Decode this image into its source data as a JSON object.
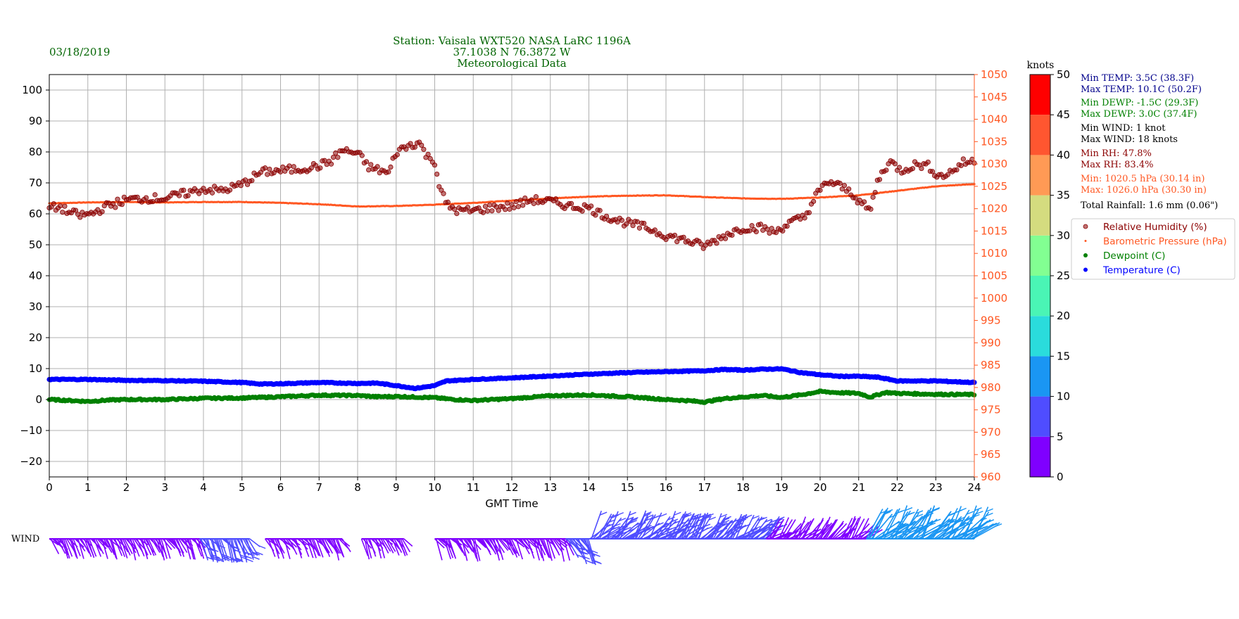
{
  "header": {
    "date": "03/18/2019",
    "title_lines": [
      "Station:  Vaisala WXT520  NASA LaRC 1196A",
      "37.1038 N 76.3872 W",
      "Meteorological Data"
    ]
  },
  "colors": {
    "title": "#006400",
    "rh": "#8b0000",
    "pressure": "#ff5722",
    "dewpoint": "#008000",
    "temperature": "#0000ff",
    "grid": "#b0b0b0"
  },
  "chart_data": {
    "type": "scatter",
    "xlabel": "GMT Time",
    "x_range": [
      0,
      24
    ],
    "x_ticks": [
      "0",
      "1",
      "2",
      "3",
      "4",
      "5",
      "6",
      "7",
      "8",
      "9",
      "10",
      "11",
      "12",
      "13",
      "14",
      "15",
      "16",
      "17",
      "18",
      "19",
      "20",
      "21",
      "22",
      "23",
      "24"
    ],
    "y_left_range": [
      -25,
      105
    ],
    "y_left_ticks": [
      "100",
      "90",
      "80",
      "70",
      "60",
      "50",
      "40",
      "30",
      "20",
      "10",
      "0",
      "−10",
      "−20"
    ],
    "y_right_range": [
      960,
      1050
    ],
    "y_right_ticks": [
      "1050",
      "1045",
      "1040",
      "1035",
      "1030",
      "1025",
      "1020",
      "1015",
      "1010",
      "1005",
      "1000",
      "995",
      "990",
      "985",
      "980",
      "975",
      "970",
      "965",
      "960"
    ],
    "grid": true,
    "legend_position": "right",
    "series": [
      {
        "name": "Relative Humidity (%)",
        "axis": "left",
        "points": [
          [
            0,
            62
          ],
          [
            0.3,
            62
          ],
          [
            0.5,
            60.5
          ],
          [
            0.8,
            59.5
          ],
          [
            1.1,
            60
          ],
          [
            1.5,
            62.5
          ],
          [
            2,
            64.5
          ],
          [
            2.5,
            65
          ],
          [
            3,
            65
          ],
          [
            3.5,
            66.5
          ],
          [
            4,
            68
          ],
          [
            4.5,
            67.5
          ],
          [
            5,
            69.5
          ],
          [
            5.5,
            73.5
          ],
          [
            6,
            74
          ],
          [
            6.5,
            74.5
          ],
          [
            7,
            75.5
          ],
          [
            7.3,
            77
          ],
          [
            7.6,
            80.5
          ],
          [
            7.8,
            80
          ],
          [
            8,
            79.5
          ],
          [
            8.3,
            75
          ],
          [
            8.6,
            74
          ],
          [
            8.8,
            73
          ],
          [
            9,
            80
          ],
          [
            9.4,
            82.5
          ],
          [
            9.6,
            83
          ],
          [
            9.8,
            78.5
          ],
          [
            10,
            77
          ],
          [
            10.1,
            70
          ],
          [
            10.3,
            63
          ],
          [
            10.6,
            61
          ],
          [
            11,
            61
          ],
          [
            11.5,
            62
          ],
          [
            12,
            62.5
          ],
          [
            12.5,
            64.5
          ],
          [
            13,
            64
          ],
          [
            13.5,
            62.5
          ],
          [
            14,
            62
          ],
          [
            14.3,
            60
          ],
          [
            14.6,
            58.5
          ],
          [
            15,
            57
          ],
          [
            15.5,
            55.5
          ],
          [
            16,
            53
          ],
          [
            16.5,
            51.5
          ],
          [
            17,
            49.5
          ],
          [
            17.3,
            51.5
          ],
          [
            17.6,
            53.5
          ],
          [
            18,
            55.5
          ],
          [
            18.5,
            55.5
          ],
          [
            18.8,
            54
          ],
          [
            19.2,
            57
          ],
          [
            19.6,
            59
          ],
          [
            19.9,
            66
          ],
          [
            20.2,
            70.5
          ],
          [
            20.5,
            69
          ],
          [
            20.8,
            67
          ],
          [
            21.1,
            63
          ],
          [
            21.3,
            61
          ],
          [
            21.5,
            71
          ],
          [
            21.8,
            77
          ],
          [
            22.1,
            74
          ],
          [
            22.5,
            76
          ],
          [
            22.8,
            75.5
          ],
          [
            23.1,
            72
          ],
          [
            23.4,
            73.5
          ],
          [
            23.7,
            76.5
          ],
          [
            24,
            77
          ]
        ]
      },
      {
        "name": "Barometric Pressure (hPa)",
        "axis": "right",
        "points": [
          [
            0,
            1021.2
          ],
          [
            1,
            1021.4
          ],
          [
            2,
            1021.5
          ],
          [
            3,
            1021.4
          ],
          [
            4,
            1021.5
          ],
          [
            5,
            1021.5
          ],
          [
            6,
            1021.3
          ],
          [
            7,
            1021.0
          ],
          [
            8,
            1020.5
          ],
          [
            9,
            1020.6
          ],
          [
            10,
            1020.9
          ],
          [
            11,
            1021.3
          ],
          [
            12,
            1021.8
          ],
          [
            13,
            1022.3
          ],
          [
            14,
            1022.7
          ],
          [
            15,
            1022.9
          ],
          [
            16,
            1023.0
          ],
          [
            17,
            1022.6
          ],
          [
            18,
            1022.3
          ],
          [
            19,
            1022.2
          ],
          [
            20,
            1022.5
          ],
          [
            21,
            1023.0
          ],
          [
            22,
            1024.0
          ],
          [
            23,
            1025.0
          ],
          [
            24,
            1025.5
          ]
        ]
      },
      {
        "name": "Dewpoint (C)",
        "axis": "left",
        "points": [
          [
            0,
            0
          ],
          [
            0.5,
            -0.3
          ],
          [
            1,
            -0.6
          ],
          [
            1.5,
            -0.2
          ],
          [
            2,
            0
          ],
          [
            3,
            0
          ],
          [
            4,
            0.4
          ],
          [
            5,
            0.5
          ],
          [
            6,
            0.9
          ],
          [
            7,
            1.4
          ],
          [
            8,
            1.3
          ],
          [
            8.5,
            0.9
          ],
          [
            9,
            1.0
          ],
          [
            10,
            0.6
          ],
          [
            10.5,
            0
          ],
          [
            11,
            -0.3
          ],
          [
            12,
            0.3
          ],
          [
            13,
            1.2
          ],
          [
            14,
            1.5
          ],
          [
            14.5,
            1.2
          ],
          [
            15,
            0.9
          ],
          [
            15.5,
            0.5
          ],
          [
            16,
            0
          ],
          [
            16.5,
            -0.3
          ],
          [
            17,
            -0.8
          ],
          [
            17.5,
            0.3
          ],
          [
            18,
            0.8
          ],
          [
            18.5,
            1.3
          ],
          [
            19,
            0.7
          ],
          [
            19.5,
            1.5
          ],
          [
            20,
            2.6
          ],
          [
            20.5,
            2.2
          ],
          [
            21,
            2.0
          ],
          [
            21.3,
            0.8
          ],
          [
            21.7,
            2.3
          ],
          [
            22,
            2.0
          ],
          [
            23,
            1.7
          ],
          [
            24,
            1.6
          ]
        ]
      },
      {
        "name": "Temperature (C)",
        "axis": "left",
        "points": [
          [
            0,
            6.5
          ],
          [
            1,
            6.5
          ],
          [
            2,
            6.2
          ],
          [
            3,
            6.1
          ],
          [
            4,
            5.9
          ],
          [
            5,
            5.5
          ],
          [
            5.5,
            5.0
          ],
          [
            6,
            5.1
          ],
          [
            7,
            5.5
          ],
          [
            8,
            5.2
          ],
          [
            8.5,
            5.3
          ],
          [
            9,
            4.5
          ],
          [
            9.5,
            3.6
          ],
          [
            10,
            4.5
          ],
          [
            10.3,
            6.0
          ],
          [
            11,
            6.5
          ],
          [
            12,
            7.0
          ],
          [
            13,
            7.6
          ],
          [
            14,
            8.2
          ],
          [
            15,
            8.7
          ],
          [
            16,
            9.0
          ],
          [
            17,
            9.3
          ],
          [
            17.5,
            9.7
          ],
          [
            18,
            9.5
          ],
          [
            18.5,
            9.8
          ],
          [
            19,
            9.9
          ],
          [
            19.5,
            8.7
          ],
          [
            20,
            8.0
          ],
          [
            20.5,
            7.5
          ],
          [
            21,
            7.5
          ],
          [
            21.5,
            7.2
          ],
          [
            22,
            6.0
          ],
          [
            23,
            6.0
          ],
          [
            24,
            5.5
          ]
        ]
      }
    ]
  },
  "colorbar": {
    "title": "knots",
    "ticks": [
      "50",
      "45",
      "40",
      "35",
      "30",
      "25",
      "20",
      "15",
      "10",
      "5",
      "0"
    ],
    "bands": [
      {
        "range": [
          0,
          5
        ],
        "color": "#7f00ff"
      },
      {
        "range": [
          5,
          10
        ],
        "color": "#4f4dff"
      },
      {
        "range": [
          10,
          15
        ],
        "color": "#1a96f3"
      },
      {
        "range": [
          15,
          20
        ],
        "color": "#2adcdc"
      },
      {
        "range": [
          20,
          25
        ],
        "color": "#4af5b5"
      },
      {
        "range": [
          25,
          30
        ],
        "color": "#82ff92"
      },
      {
        "range": [
          30,
          35
        ],
        "color": "#d4dc7f"
      },
      {
        "range": [
          35,
          40
        ],
        "color": "#ff9a55"
      },
      {
        "range": [
          40,
          45
        ],
        "color": "#ff5630"
      },
      {
        "range": [
          45,
          50
        ],
        "color": "#ff0000"
      }
    ]
  },
  "stats": [
    {
      "text": "Min TEMP: 3.5C (38.3F)",
      "color": "#00008b"
    },
    {
      "text": "Max TEMP: 10.1C (50.2F)",
      "color": "#00008b"
    },
    {
      "text": "Min DEWP: -1.5C (29.3F)",
      "color": "#008000"
    },
    {
      "text": "Max DEWP: 3.0C (37.4F)",
      "color": "#008000"
    },
    {
      "text": "Min WIND: 1 knot",
      "color": "#000000"
    },
    {
      "text": "Max WIND: 18 knots",
      "color": "#000000"
    },
    {
      "text": "Min RH: 47.8%",
      "color": "#8b0000"
    },
    {
      "text": "Max RH: 83.4%",
      "color": "#8b0000"
    },
    {
      "text": "Min: 1020.5 hPa (30.14 in)",
      "color": "#ff5722"
    },
    {
      "text": "Max: 1026.0 hPa (30.30 in)",
      "color": "#ff5722"
    },
    {
      "text": "Total Rainfall: 1.6 mm (0.06\")",
      "color": "#000000"
    }
  ],
  "wind": {
    "label": "WIND",
    "segments": [
      {
        "start": 0.0,
        "end": 3.9,
        "speed": 3
      },
      {
        "start": 3.9,
        "end": 5.2,
        "speed": 5
      },
      {
        "start": 5.6,
        "end": 7.6,
        "speed": 3
      },
      {
        "start": 8.1,
        "end": 9.2,
        "speed": 2
      },
      {
        "start": 10.0,
        "end": 13.4,
        "speed": 4
      },
      {
        "start": 13.4,
        "end": 16.4,
        "speed": 9
      },
      {
        "start": 16.4,
        "end": 18.6,
        "speed": 7
      },
      {
        "start": 18.6,
        "end": 21.2,
        "speed": 4
      },
      {
        "start": 21.2,
        "end": 24.0,
        "speed": 14
      }
    ]
  }
}
